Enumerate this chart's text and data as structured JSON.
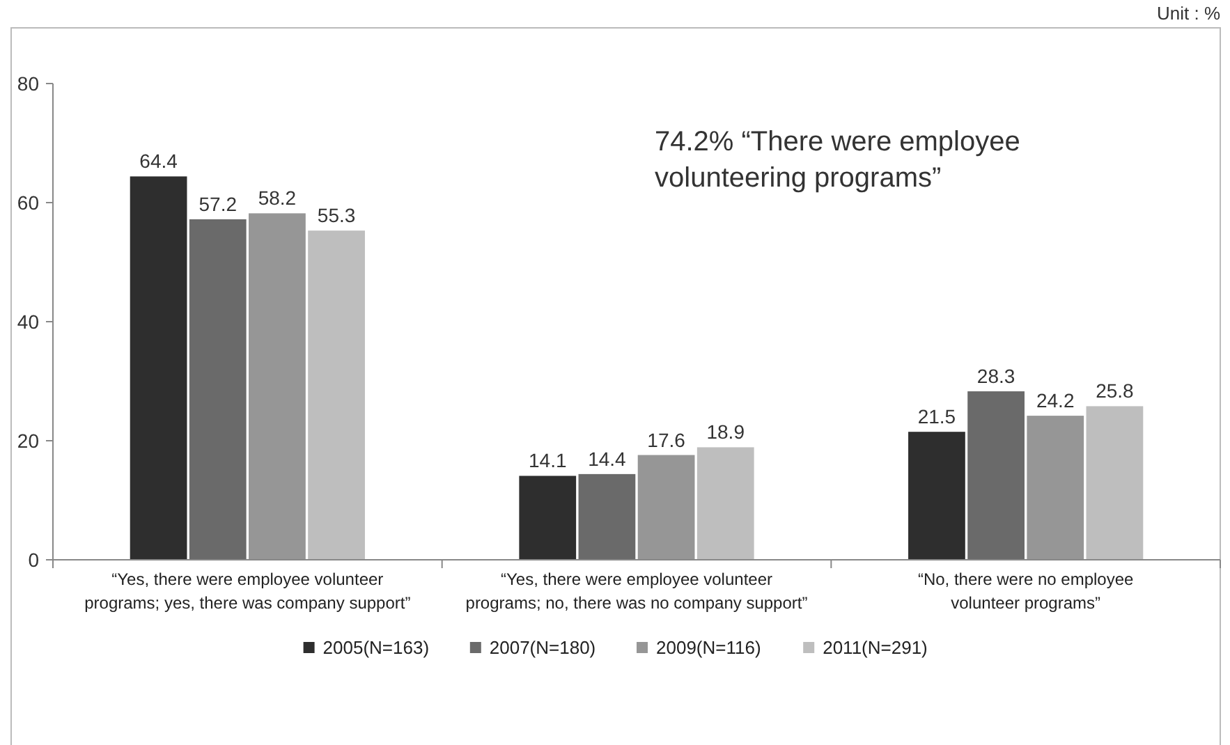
{
  "chart_data": {
    "type": "bar",
    "categories": [
      "“Yes, there were employee volunteer programs; yes, there was company support”",
      "“Yes, there were employee volunteer programs; no, there was no company support”",
      "“No, there were no employee volunteer programs”"
    ],
    "series": [
      {
        "name": "2005(N=163)",
        "color": "#2e2e2e",
        "values": [
          64.4,
          14.1,
          21.5
        ]
      },
      {
        "name": "2007(N=180)",
        "color": "#6a6a6a",
        "values": [
          57.2,
          14.4,
          28.3
        ]
      },
      {
        "name": "2009(N=116)",
        "color": "#969696",
        "values": [
          58.2,
          17.6,
          24.2
        ]
      },
      {
        "name": "2011(N=291)",
        "color": "#bebebe",
        "values": [
          55.3,
          18.9,
          25.8
        ]
      }
    ],
    "ylim": [
      0,
      80
    ],
    "yticks": [
      0,
      20,
      40,
      60,
      80
    ],
    "data_labels": true,
    "legend": "bottom",
    "annotations": [
      "Unit : %",
      "74.2% “There were employee volunteering programs”"
    ]
  }
}
